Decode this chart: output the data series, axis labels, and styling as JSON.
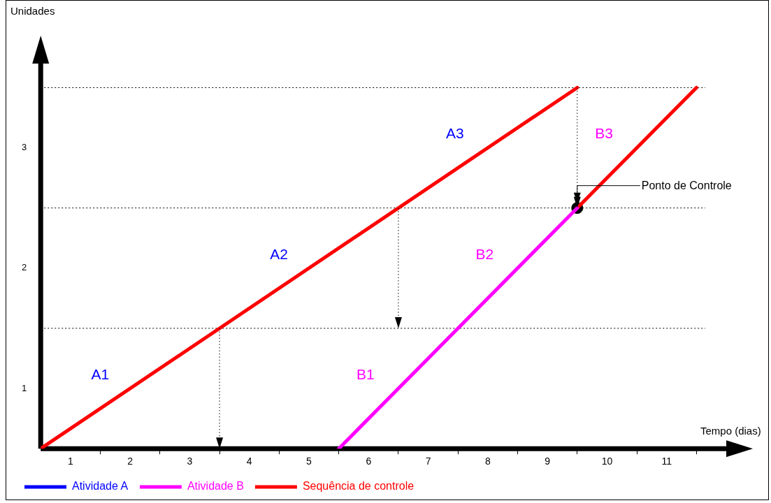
{
  "chart_data": {
    "type": "line",
    "xlabel": "Tempo (dias)",
    "ylabel": "Unidades",
    "xlim": [
      0,
      11.5
    ],
    "ylim": [
      0,
      3.2
    ],
    "xticks": [
      {
        "value": 0.5,
        "label": "1"
      },
      {
        "value": 1.5,
        "label": "2"
      },
      {
        "value": 2.5,
        "label": "3"
      },
      {
        "value": 3.5,
        "label": "4"
      },
      {
        "value": 4.5,
        "label": "5"
      },
      {
        "value": 5.5,
        "label": "6"
      },
      {
        "value": 6.5,
        "label": "7"
      },
      {
        "value": 7.5,
        "label": "8"
      },
      {
        "value": 8.5,
        "label": "9"
      },
      {
        "value": 9.5,
        "label": "10"
      },
      {
        "value": 10.5,
        "label": "11"
      },
      {
        "value": 1,
        "label": null
      },
      {
        "value": 2,
        "label": null
      },
      {
        "value": 3,
        "label": null
      },
      {
        "value": 4,
        "label": null
      },
      {
        "value": 5,
        "label": null
      },
      {
        "value": 6,
        "label": null
      },
      {
        "value": 7,
        "label": null
      },
      {
        "value": 8,
        "label": null
      },
      {
        "value": 9,
        "label": null
      },
      {
        "value": 10,
        "label": null
      },
      {
        "value": 11,
        "label": null
      }
    ],
    "yticks": [
      {
        "value": 0.5,
        "label": "1"
      },
      {
        "value": 1.5,
        "label": "2"
      },
      {
        "value": 2.5,
        "label": "3"
      },
      {
        "value": 1,
        "label": null
      },
      {
        "value": 2,
        "label": null
      },
      {
        "value": 3,
        "label": null
      }
    ],
    "grid": "y",
    "legend": "bottom",
    "marker": "none",
    "line_style": "solid",
    "series": [
      {
        "name": "Atividade A",
        "color": "#0000ff"
      },
      {
        "name": "Atividade B",
        "color": "#ff00ff",
        "x": [
          5,
          9
        ],
        "values": [
          0,
          2
        ]
      },
      {
        "name": "Sequência de controle",
        "color": "#ff0000",
        "x": [
          0,
          9
        ],
        "values": [
          0,
          3
        ]
      },
      {
        "color": "#ff0000",
        "x": [
          9,
          11
        ],
        "values": [
          2,
          3
        ]
      },
      {
        "type": "scatter",
        "color": "#000000",
        "marker": "circle",
        "x": [
          9
        ],
        "values": [
          2
        ]
      }
    ],
    "annotations": [
      "A1",
      "A2",
      "A3",
      "B1",
      "B2",
      "B3",
      "Ponto de Controle"
    ]
  }
}
